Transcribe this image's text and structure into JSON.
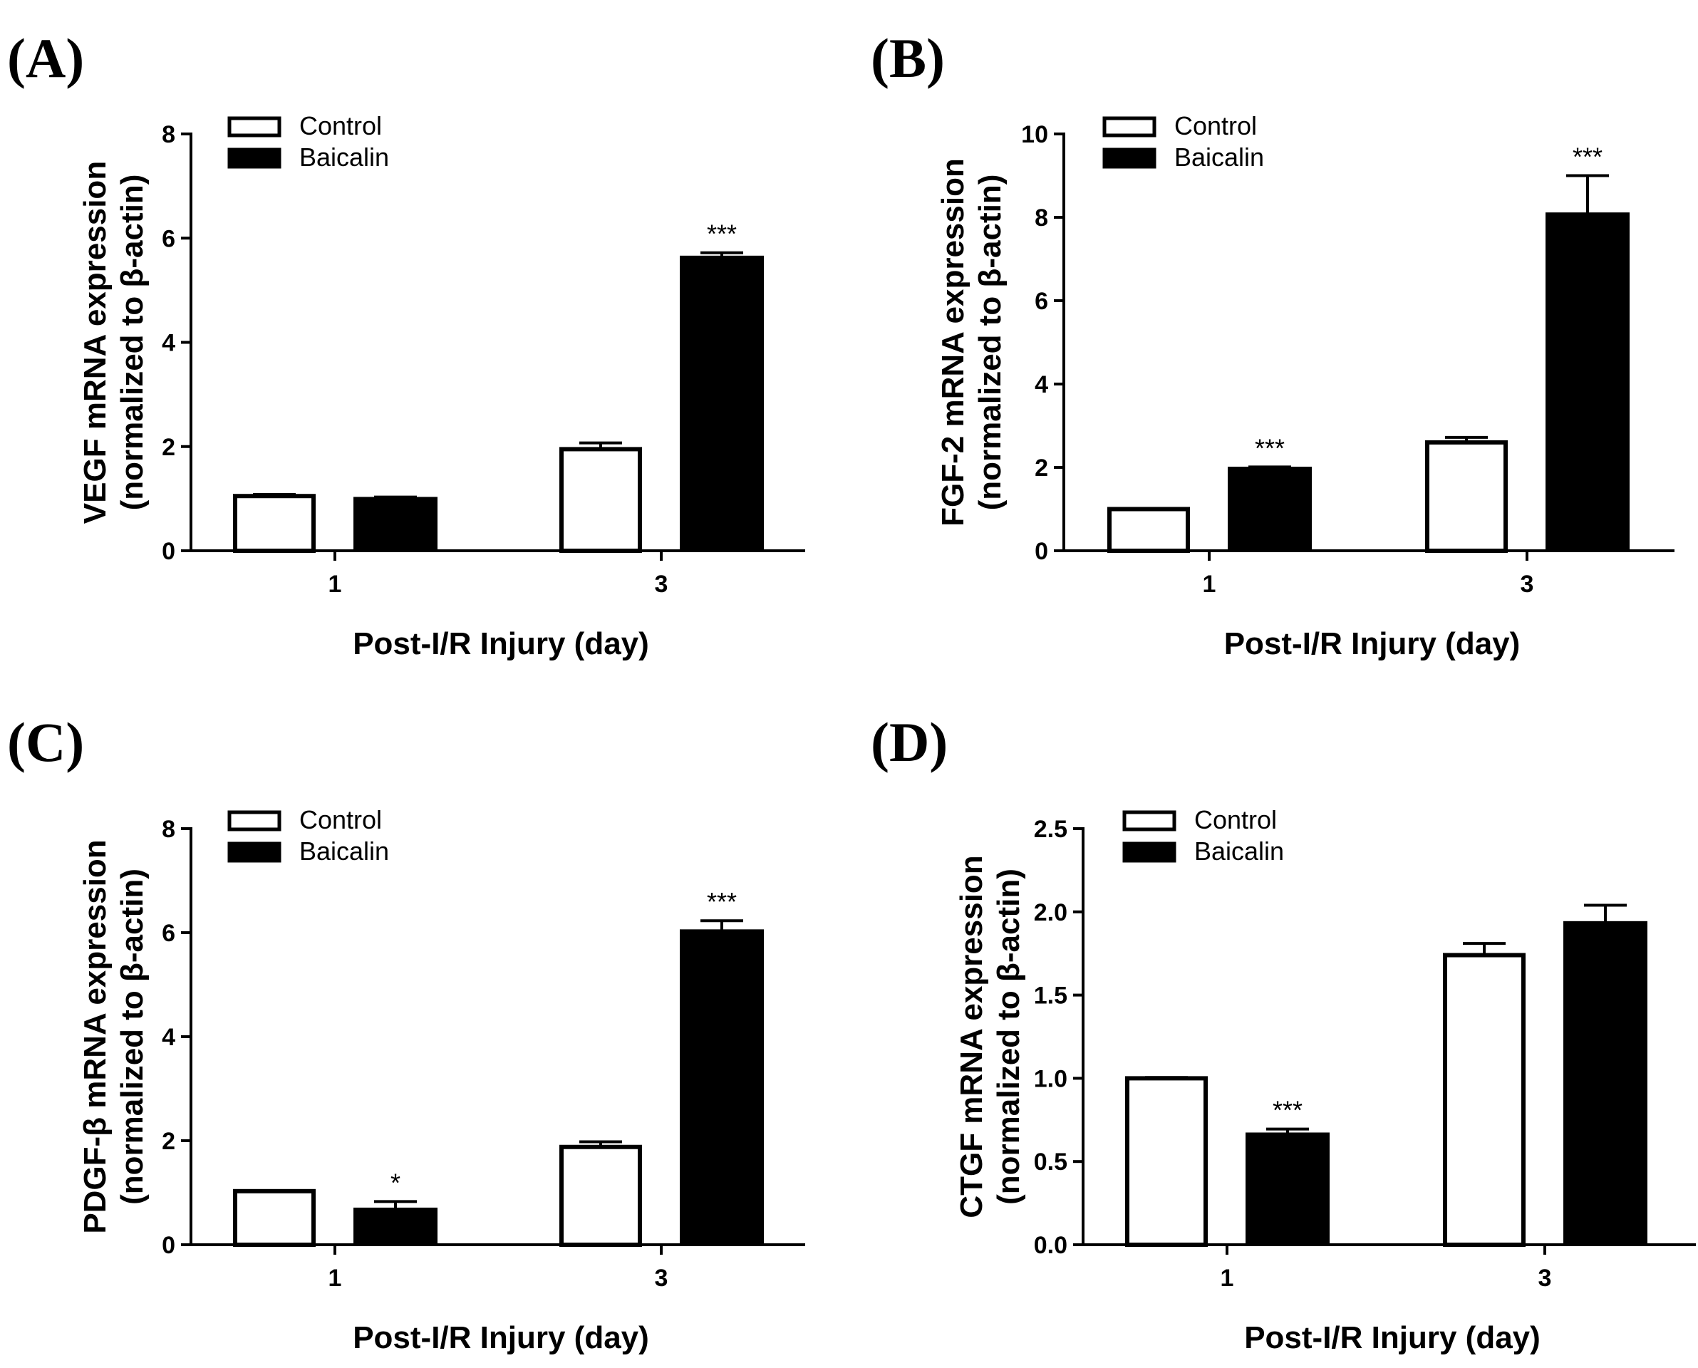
{
  "colors": {
    "control_fill": "#ffffff",
    "baicalin_fill": "#000000",
    "stroke": "#000000"
  },
  "chart_data": [
    {
      "panel": "(A)",
      "type": "bar",
      "categories": [
        "1",
        "3"
      ],
      "xlabel": "Post-I/R Injury (day)",
      "ylabel": [
        "VEGF mRNA expression",
        "(normalized to β-actin)"
      ],
      "ylim": [
        0,
        8
      ],
      "yticks": [
        "0",
        "2",
        "4",
        "6",
        "8"
      ],
      "legend": [
        "Control",
        "Baicalin"
      ],
      "series": [
        {
          "name": "Control",
          "values": [
            1.05,
            1.95
          ],
          "errors": [
            0.03,
            0.12
          ],
          "sig": [
            "",
            ""
          ]
        },
        {
          "name": "Baicalin",
          "values": [
            1.02,
            5.65
          ],
          "errors": [
            0.01,
            0.07
          ],
          "sig": [
            "",
            "***"
          ]
        }
      ]
    },
    {
      "panel": "(B)",
      "type": "bar",
      "categories": [
        "1",
        "3"
      ],
      "xlabel": "Post-I/R Injury (day)",
      "ylabel": [
        "FGF-2 mRNA expression",
        "(normalized to β-actin)"
      ],
      "ylim": [
        0,
        10
      ],
      "yticks": [
        "0",
        "2",
        "4",
        "6",
        "8",
        "10"
      ],
      "legend": [
        "Control",
        "Baicalin"
      ],
      "series": [
        {
          "name": "Control",
          "values": [
            1.0,
            2.6
          ],
          "errors": [
            0.01,
            0.12
          ],
          "sig": [
            "",
            ""
          ]
        },
        {
          "name": "Baicalin",
          "values": [
            2.0,
            8.1
          ],
          "errors": [
            0.01,
            0.9
          ],
          "sig": [
            "***",
            "***"
          ]
        }
      ]
    },
    {
      "panel": "(C)",
      "type": "bar",
      "categories": [
        "1",
        "3"
      ],
      "xlabel": "Post-I/R Injury (day)",
      "ylabel": [
        "PDGF-β mRNA expression",
        "(normalized to β-actin)"
      ],
      "ylim": [
        0,
        8
      ],
      "yticks": [
        "0",
        "2",
        "4",
        "6",
        "8"
      ],
      "legend": [
        "Control",
        "Baicalin"
      ],
      "series": [
        {
          "name": "Control",
          "values": [
            1.03,
            1.88
          ],
          "errors": [
            0.01,
            0.1
          ],
          "sig": [
            "",
            ""
          ]
        },
        {
          "name": "Baicalin",
          "values": [
            0.7,
            6.05
          ],
          "errors": [
            0.13,
            0.18
          ],
          "sig": [
            "*",
            "***"
          ]
        }
      ]
    },
    {
      "panel": "(D)",
      "type": "bar",
      "categories": [
        "1",
        "3"
      ],
      "xlabel": "Post-I/R Injury (day)",
      "ylabel": [
        "CTGF mRNA expression",
        "(normalized to β-actin)"
      ],
      "ylim": [
        0,
        2.5
      ],
      "yticks": [
        "0.0",
        "0.5",
        "1.0",
        "1.5",
        "2.0",
        "2.5"
      ],
      "legend": [
        "Control",
        "Baicalin"
      ],
      "series": [
        {
          "name": "Control",
          "values": [
            1.0,
            1.74
          ],
          "errors": [
            0.005,
            0.07
          ],
          "sig": [
            "",
            ""
          ]
        },
        {
          "name": "Baicalin",
          "values": [
            0.67,
            1.94
          ],
          "errors": [
            0.025,
            0.1
          ],
          "sig": [
            "***",
            ""
          ]
        }
      ]
    }
  ]
}
